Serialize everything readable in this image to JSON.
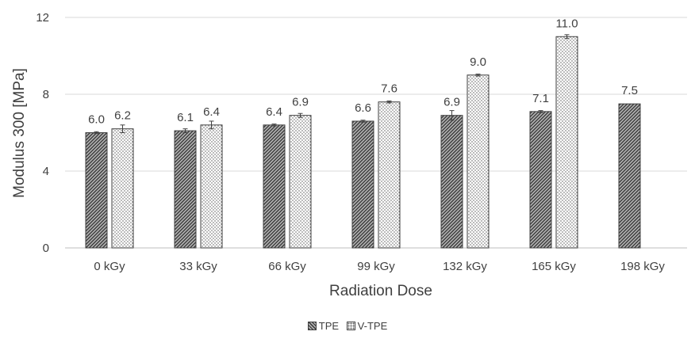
{
  "chart_data": {
    "type": "bar",
    "categories": [
      "0 kGy",
      "33 kGy",
      "66 kGy",
      "99 kGy",
      "132 kGy",
      "165 kGy",
      "198 kGy"
    ],
    "series": [
      {
        "name": "TPE",
        "values": [
          6.0,
          6.1,
          6.4,
          6.6,
          6.9,
          7.1,
          7.5
        ],
        "labels": [
          "6.0",
          "6.1",
          "6.4",
          "6.6",
          "6.9",
          "7.1",
          "7.5"
        ],
        "error": [
          0.05,
          0.1,
          0.05,
          0.05,
          0.25,
          0.05,
          0.0
        ]
      },
      {
        "name": "V-TPE",
        "values": [
          6.2,
          6.4,
          6.9,
          7.6,
          9.0,
          11.0,
          null
        ],
        "labels": [
          "6.2",
          "6.4",
          "6.9",
          "7.6",
          "9.0",
          "11.0",
          ""
        ],
        "error": [
          0.2,
          0.2,
          0.1,
          0.05,
          0.05,
          0.1,
          null
        ]
      }
    ],
    "xlabel": "Radiation Dose",
    "ylabel": "Modulus 300 [MPa]",
    "ylim": [
      0,
      12
    ],
    "yticks": [
      "0",
      "4",
      "8",
      "12"
    ],
    "grid": true,
    "legend_position": "bottom"
  }
}
